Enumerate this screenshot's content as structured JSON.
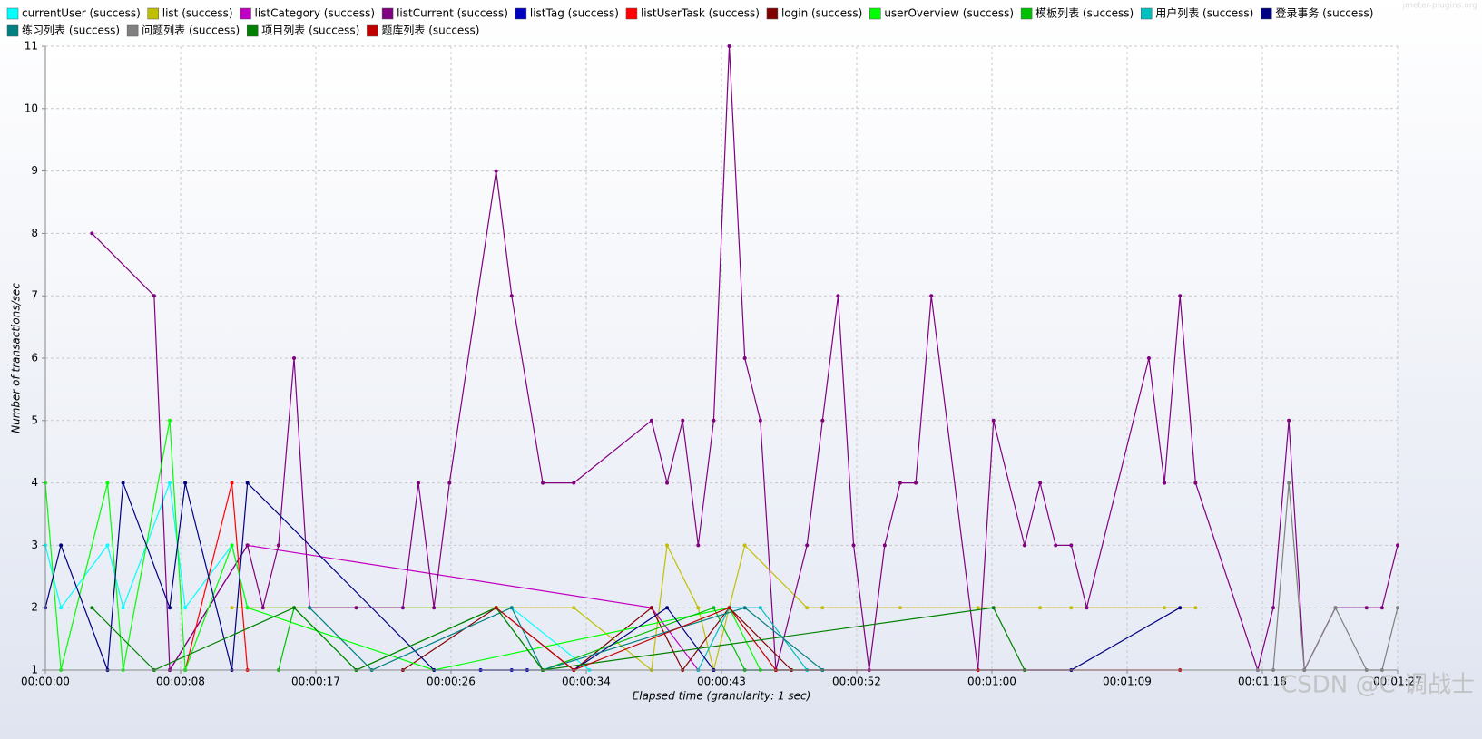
{
  "chart_data": {
    "type": "line",
    "x_label": "Elapsed time (granularity: 1 sec)",
    "y_label": "Number of transactions/sec",
    "watermarks": [
      "jmeter-plugins.org",
      "CSDN @C-调战士"
    ],
    "xlim": [
      0,
      87
    ],
    "ylim": [
      1,
      11
    ],
    "grid": true,
    "xticks": [
      {
        "value": 0,
        "label": "00:00:00"
      },
      {
        "value": 8.7,
        "label": "00:00:08"
      },
      {
        "value": 17.4,
        "label": "00:00:17"
      },
      {
        "value": 26.1,
        "label": "00:00:26"
      },
      {
        "value": 34.8,
        "label": "00:00:34"
      },
      {
        "value": 43.5,
        "label": "00:00:43"
      },
      {
        "value": 52.2,
        "label": "00:00:52"
      },
      {
        "value": 60.9,
        "label": "00:01:00"
      },
      {
        "value": 69.6,
        "label": "00:01:09"
      },
      {
        "value": 78.3,
        "label": "00:01:18"
      },
      {
        "value": 87,
        "label": "00:01:27"
      }
    ],
    "yticks": [
      1,
      2,
      3,
      4,
      5,
      6,
      7,
      8,
      9,
      10,
      11
    ],
    "series": [
      {
        "name": "currentUser (success)",
        "color": "#00ffff",
        "x": [
          0,
          1,
          4,
          5,
          8,
          9,
          12,
          13,
          30,
          35
        ],
        "values": [
          3,
          2,
          3,
          2,
          4,
          2,
          3,
          2,
          2,
          1
        ]
      },
      {
        "name": "list (success)",
        "color": "#c0c000",
        "x": [
          12,
          20,
          29,
          34,
          39,
          40,
          42,
          43,
          45,
          49,
          50,
          55,
          60,
          64,
          66,
          72,
          74
        ],
        "values": [
          2,
          2,
          2,
          2,
          1,
          3,
          2,
          1,
          3,
          2,
          2,
          2,
          2,
          2,
          2,
          2,
          2
        ]
      },
      {
        "name": "listCategory (success)",
        "color": "#c000c0",
        "x": [
          8,
          13,
          39,
          42
        ],
        "values": [
          1,
          3,
          2,
          1
        ]
      },
      {
        "name": "listCurrent (success)",
        "color": "#800080",
        "x": [
          3,
          7,
          8,
          13,
          14,
          15,
          16,
          17,
          20,
          23,
          24,
          25,
          26,
          29,
          30,
          32,
          34,
          39,
          40,
          41,
          42,
          43,
          44,
          45,
          46,
          47,
          49,
          50,
          51,
          52,
          53,
          54,
          55,
          56,
          57,
          60,
          61,
          63,
          64,
          65,
          66,
          67,
          71,
          72,
          73,
          74,
          78,
          79,
          80,
          81,
          83,
          85,
          86,
          87
        ],
        "values": [
          8,
          7,
          1,
          3,
          2,
          3,
          6,
          2,
          2,
          2,
          4,
          2,
          4,
          9,
          7,
          4,
          4,
          5,
          4,
          5,
          3,
          5,
          11,
          6,
          5,
          1,
          3,
          5,
          7,
          3,
          1,
          3,
          4,
          4,
          7,
          1,
          5,
          3,
          4,
          3,
          3,
          2,
          6,
          4,
          7,
          4,
          1,
          2,
          5,
          1,
          2,
          2,
          2,
          3
        ]
      },
      {
        "name": "listTag (success)",
        "color": "#0000c0",
        "x": [
          28,
          30,
          31
        ],
        "values": [
          1,
          1,
          1
        ]
      },
      {
        "name": "listUserTask (success)",
        "color": "#ff0000",
        "x": [
          9,
          12,
          13
        ],
        "values": [
          1,
          4,
          1
        ]
      },
      {
        "name": "login (success)",
        "color": "#800000",
        "x": [
          23,
          29,
          34,
          39,
          41,
          44,
          48
        ],
        "values": [
          1,
          2,
          1,
          2,
          1,
          2,
          1
        ]
      },
      {
        "name": "userOverview (success)",
        "color": "#00ff00",
        "x": [
          0,
          1,
          4,
          5,
          8,
          9,
          12,
          13,
          25,
          44,
          46
        ],
        "values": [
          4,
          1,
          4,
          1,
          5,
          1,
          3,
          2,
          1,
          2,
          1
        ]
      },
      {
        "name": "模板列表 (success)",
        "color": "#00c000",
        "x": [
          15,
          16,
          20,
          29,
          32,
          43,
          45,
          50
        ],
        "values": [
          1,
          2,
          1,
          2,
          1,
          2,
          1,
          1
        ]
      },
      {
        "name": "用户列表 (success)",
        "color": "#00c0c0",
        "x": [
          42,
          44,
          46,
          49
        ],
        "values": [
          1,
          2,
          2,
          1
        ]
      },
      {
        "name": "登录事务 (success)",
        "color": "#000080",
        "x": [
          0,
          1,
          4,
          5,
          8,
          9,
          12,
          13,
          25,
          34,
          40,
          43,
          66,
          73
        ],
        "values": [
          2,
          3,
          1,
          4,
          2,
          4,
          1,
          4,
          1,
          1,
          2,
          1,
          1,
          2
        ]
      },
      {
        "name": "练习列表 (success)",
        "color": "#008080",
        "x": [
          17,
          21,
          30,
          32,
          45,
          50
        ],
        "values": [
          2,
          1,
          2,
          1,
          2,
          1
        ]
      },
      {
        "name": "问题列表 (success)",
        "color": "#808080",
        "x": [
          78,
          79,
          80,
          81,
          83,
          85,
          86,
          87
        ],
        "values": [
          1,
          1,
          4,
          1,
          2,
          1,
          1,
          2
        ]
      },
      {
        "name": "项目列表 (success)",
        "color": "#008000",
        "x": [
          3,
          7,
          16,
          20,
          29,
          32,
          61,
          63
        ],
        "values": [
          2,
          1,
          2,
          1,
          2,
          1,
          2,
          1
        ]
      },
      {
        "name": "题库列表 (success)",
        "color": "#c00000",
        "x": [
          29,
          34,
          44,
          47,
          60,
          73
        ],
        "values": [
          2,
          1,
          2,
          1,
          1,
          1
        ]
      }
    ]
  }
}
